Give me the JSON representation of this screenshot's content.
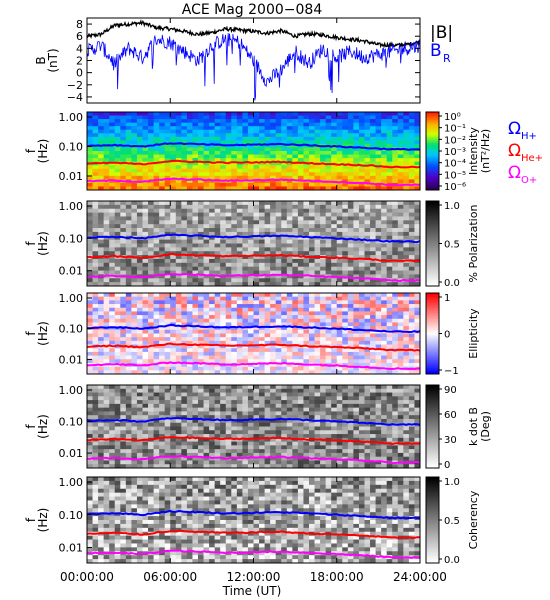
{
  "chart_data": [
    {
      "type": "line",
      "title": "ACE Mag 2000−084",
      "ylabel": "B",
      "yunit": "(nT)",
      "yticks": [
        "−4",
        "−2",
        "0",
        "2",
        "4",
        "6",
        "8"
      ],
      "ylim": [
        -5,
        9
      ],
      "xlim": [
        0,
        24
      ],
      "x_unit": "hours",
      "series": [
        {
          "name": "|B|",
          "color": "#000000",
          "x": [
            0,
            1,
            2,
            3,
            4,
            5,
            6,
            7,
            8,
            9,
            10,
            11,
            12,
            13,
            14,
            15,
            16,
            17,
            18,
            19,
            20,
            21,
            22,
            23,
            24
          ],
          "values": [
            6.0,
            6.3,
            7.8,
            8.0,
            8.2,
            7.4,
            7.2,
            6.8,
            6.3,
            6.6,
            7.2,
            7.0,
            6.8,
            6.5,
            6.9,
            6.0,
            6.4,
            6.2,
            5.8,
            5.5,
            5.2,
            4.6,
            4.5,
            4.6,
            5.1
          ]
        },
        {
          "name": "B",
          "subscript": "R",
          "color": "#0000ff",
          "x": [
            0,
            1,
            2,
            3,
            4,
            5,
            6,
            7,
            8,
            9,
            10,
            11,
            12,
            13,
            14,
            15,
            16,
            17,
            18,
            19,
            20,
            21,
            22,
            23,
            24
          ],
          "values": [
            3.5,
            4.5,
            1.5,
            4.0,
            2.5,
            5.5,
            5.0,
            3.5,
            2.0,
            4.5,
            5.5,
            5.0,
            2.0,
            -1.5,
            0.5,
            3.5,
            1.5,
            4.0,
            2.5,
            3.5,
            2.5,
            3.0,
            3.5,
            4.0,
            4.5
          ]
        }
      ]
    },
    {
      "type": "heatmap",
      "ylabel": "f",
      "yunit": "(Hz)",
      "yticks": [
        "0.01",
        "0.10",
        "1.00"
      ],
      "colorbar": {
        "label": "Intensity",
        "unit": "(nT²/Hz)",
        "ticks": [
          "10⁰",
          "10⁻¹",
          "10⁻²",
          "10⁻³",
          "10⁻⁴",
          "10⁻⁵",
          "10⁻⁶"
        ],
        "range": [
          -6.5,
          0
        ]
      },
      "lines": [
        {
          "label": "Ω",
          "subscript": "H+",
          "color": "#0000ff"
        },
        {
          "label": "Ω",
          "subscript": "He+",
          "color": "#ff0000"
        },
        {
          "label": "Ω",
          "subscript": "O+",
          "color": "#ff00ff"
        }
      ]
    },
    {
      "type": "heatmap",
      "ylabel": "f",
      "yunit": "(Hz)",
      "yticks": [
        "0.01",
        "0.10",
        "1.00"
      ],
      "colorbar": {
        "label": "% Polarization",
        "ticks": [
          "0.0",
          "0.5",
          "1.0"
        ],
        "range": [
          0,
          1
        ]
      }
    },
    {
      "type": "heatmap",
      "ylabel": "f",
      "yunit": "(Hz)",
      "yticks": [
        "0.01",
        "0.10",
        "1.00"
      ],
      "colorbar": {
        "label": "Ellipticity",
        "ticks": [
          "−1",
          "0",
          "1"
        ],
        "range": [
          -1,
          1
        ]
      }
    },
    {
      "type": "heatmap",
      "ylabel": "f",
      "yunit": "(Hz)",
      "yticks": [
        "0.01",
        "0.10",
        "1.00"
      ],
      "colorbar": {
        "label": "k dot B",
        "unit": "(Deg)",
        "ticks": [
          "0",
          "30",
          "60",
          "90"
        ],
        "range": [
          0,
          90
        ]
      }
    },
    {
      "type": "heatmap",
      "ylabel": "f",
      "yunit": "(Hz)",
      "yticks": [
        "0.01",
        "0.10",
        "1.00"
      ],
      "colorbar": {
        "label": "Coherency",
        "ticks": [
          "0.0",
          "0.5",
          "1.0"
        ],
        "range": [
          0,
          1
        ]
      }
    }
  ],
  "cyclotron": {
    "x_hours": [
      0,
      2,
      4,
      6,
      8,
      10,
      12,
      14,
      16,
      18,
      20,
      22,
      24
    ],
    "H+": [
      0.105,
      0.112,
      0.1,
      0.128,
      0.12,
      0.11,
      0.115,
      0.12,
      0.11,
      0.1,
      0.09,
      0.08,
      0.08
    ],
    "He+": [
      0.026,
      0.028,
      0.025,
      0.032,
      0.03,
      0.028,
      0.029,
      0.03,
      0.027,
      0.025,
      0.023,
      0.02,
      0.02
    ],
    "O+": [
      0.0066,
      0.007,
      0.0063,
      0.008,
      0.0075,
      0.0069,
      0.0072,
      0.0075,
      0.0069,
      0.0063,
      0.0057,
      0.005,
      0.005
    ]
  },
  "xaxis": {
    "ticks": [
      "00:00:00",
      "06:00:00",
      "12:00:00",
      "18:00:00",
      "24:00:00"
    ],
    "label": "Time (UT)"
  }
}
